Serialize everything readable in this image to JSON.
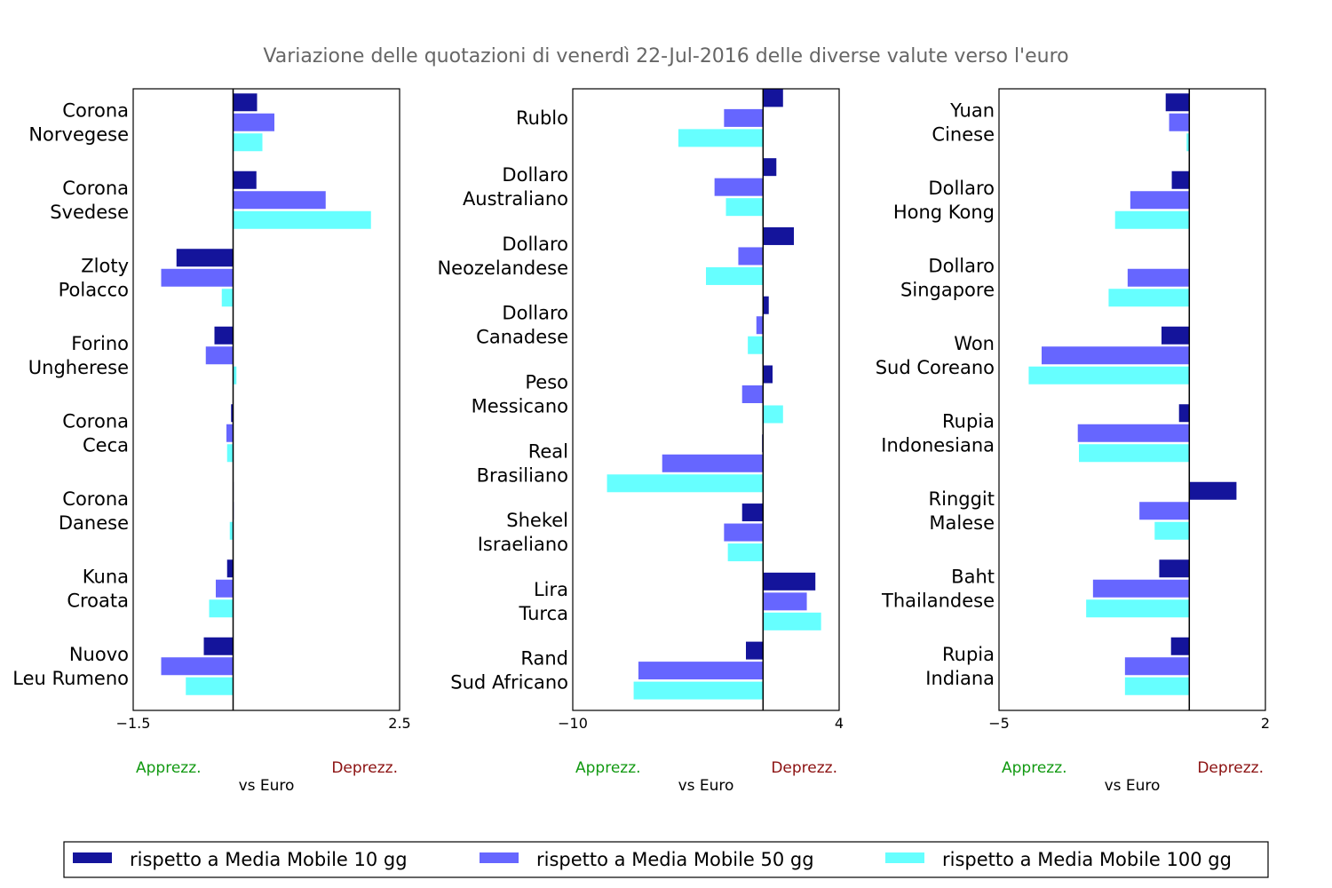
{
  "chart_data": {
    "type": "bar",
    "title": "Variazione delle quotazioni di venerdì 22-Jul-2016 delle diverse valute verso l'euro",
    "orientation": "horizontal",
    "legend": {
      "position": "bottom",
      "entries": [
        {
          "key": "mm10",
          "label": "rispetto a Media Mobile 10 gg",
          "color": "#14149b"
        },
        {
          "key": "mm50",
          "label": "rispetto a Media Mobile 50 gg",
          "color": "#6666ff"
        },
        {
          "key": "mm100",
          "label": "rispetto a Media Mobile 100 gg",
          "color": "#66ffff"
        }
      ]
    },
    "panels": [
      {
        "xlim": [
          -1.5,
          2.5
        ],
        "xticks": [
          "−1.5",
          "2.5"
        ],
        "xlabel": "vs Euro",
        "left_label": "Apprezz.",
        "right_label": "Deprezz.",
        "categories": [
          {
            "name": [
              "Corona",
              "Norvegese"
            ],
            "values": [
              0.36,
              0.62,
              0.44
            ]
          },
          {
            "name": [
              "Corona",
              "Svedese"
            ],
            "values": [
              0.35,
              1.39,
              2.07
            ]
          },
          {
            "name": [
              "Zloty",
              "Polacco"
            ],
            "values": [
              -0.85,
              -1.08,
              -0.17
            ]
          },
          {
            "name": [
              "Forino",
              "Ungherese"
            ],
            "values": [
              -0.28,
              -0.41,
              0.05
            ]
          },
          {
            "name": [
              "Corona",
              "Ceca"
            ],
            "values": [
              -0.03,
              -0.1,
              -0.09
            ]
          },
          {
            "name": [
              "Corona",
              "Danese"
            ],
            "values": [
              0.0,
              0.01,
              -0.05
            ]
          },
          {
            "name": [
              "Kuna",
              "Croata"
            ],
            "values": [
              -0.09,
              -0.26,
              -0.36
            ]
          },
          {
            "name": [
              "Nuovo",
              "Leu Rumeno"
            ],
            "values": [
              -0.44,
              -1.08,
              -0.71
            ]
          }
        ]
      },
      {
        "xlim": [
          -10,
          4
        ],
        "xticks": [
          "−10",
          "4"
        ],
        "xlabel": "vs Euro",
        "left_label": "Apprezz.",
        "right_label": "Deprezz.",
        "categories": [
          {
            "name": [
              "Rublo"
            ],
            "values": [
              1.05,
              -2.05,
              -4.45
            ]
          },
          {
            "name": [
              "Dollaro",
              "Australiano"
            ],
            "values": [
              0.7,
              -2.55,
              -1.95
            ]
          },
          {
            "name": [
              "Dollaro",
              "Neozelandese"
            ],
            "values": [
              1.62,
              -1.3,
              -3.0
            ]
          },
          {
            "name": [
              "Dollaro",
              "Canadese"
            ],
            "values": [
              0.3,
              -0.35,
              -0.8
            ]
          },
          {
            "name": [
              "Peso",
              "Messicano"
            ],
            "values": [
              0.5,
              -1.1,
              1.05
            ]
          },
          {
            "name": [
              "Real",
              "Brasiliano"
            ],
            "values": [
              -0.05,
              -5.3,
              -8.2
            ]
          },
          {
            "name": [
              "Shekel",
              "Israeliano"
            ],
            "values": [
              -1.1,
              -2.05,
              -1.85
            ]
          },
          {
            "name": [
              "Lira",
              "Turca"
            ],
            "values": [
              2.75,
              2.3,
              3.05
            ]
          },
          {
            "name": [
              "Rand",
              "Sud Africano"
            ],
            "values": [
              -0.9,
              -6.55,
              -6.8
            ]
          }
        ]
      },
      {
        "xlim": [
          -5,
          2
        ],
        "xticks": [
          "−5",
          "2"
        ],
        "xlabel": "vs Euro",
        "left_label": "Apprezz.",
        "right_label": "Deprezz.",
        "categories": [
          {
            "name": [
              "Yuan",
              "Cinese"
            ],
            "values": [
              -0.62,
              -0.53,
              -0.07
            ]
          },
          {
            "name": [
              "Dollaro",
              "Hong Kong"
            ],
            "values": [
              -0.46,
              -1.55,
              -1.95
            ]
          },
          {
            "name": [
              "Dollaro",
              "Singapore"
            ],
            "values": [
              0.0,
              -1.62,
              -2.12
            ]
          },
          {
            "name": [
              "Won",
              "Sud Coreano"
            ],
            "values": [
              -0.73,
              -3.88,
              -4.22
            ]
          },
          {
            "name": [
              "Rupia",
              "Indonesiana"
            ],
            "values": [
              -0.27,
              -2.93,
              -2.9
            ]
          },
          {
            "name": [
              "Ringgit",
              "Malese"
            ],
            "values": [
              1.24,
              -1.31,
              -0.91
            ]
          },
          {
            "name": [
              "Baht",
              "Thailandese"
            ],
            "values": [
              -0.79,
              -2.53,
              -2.71
            ]
          },
          {
            "name": [
              "Rupia",
              "Indiana"
            ],
            "values": [
              -0.48,
              -1.69,
              -1.69
            ]
          }
        ]
      }
    ]
  }
}
